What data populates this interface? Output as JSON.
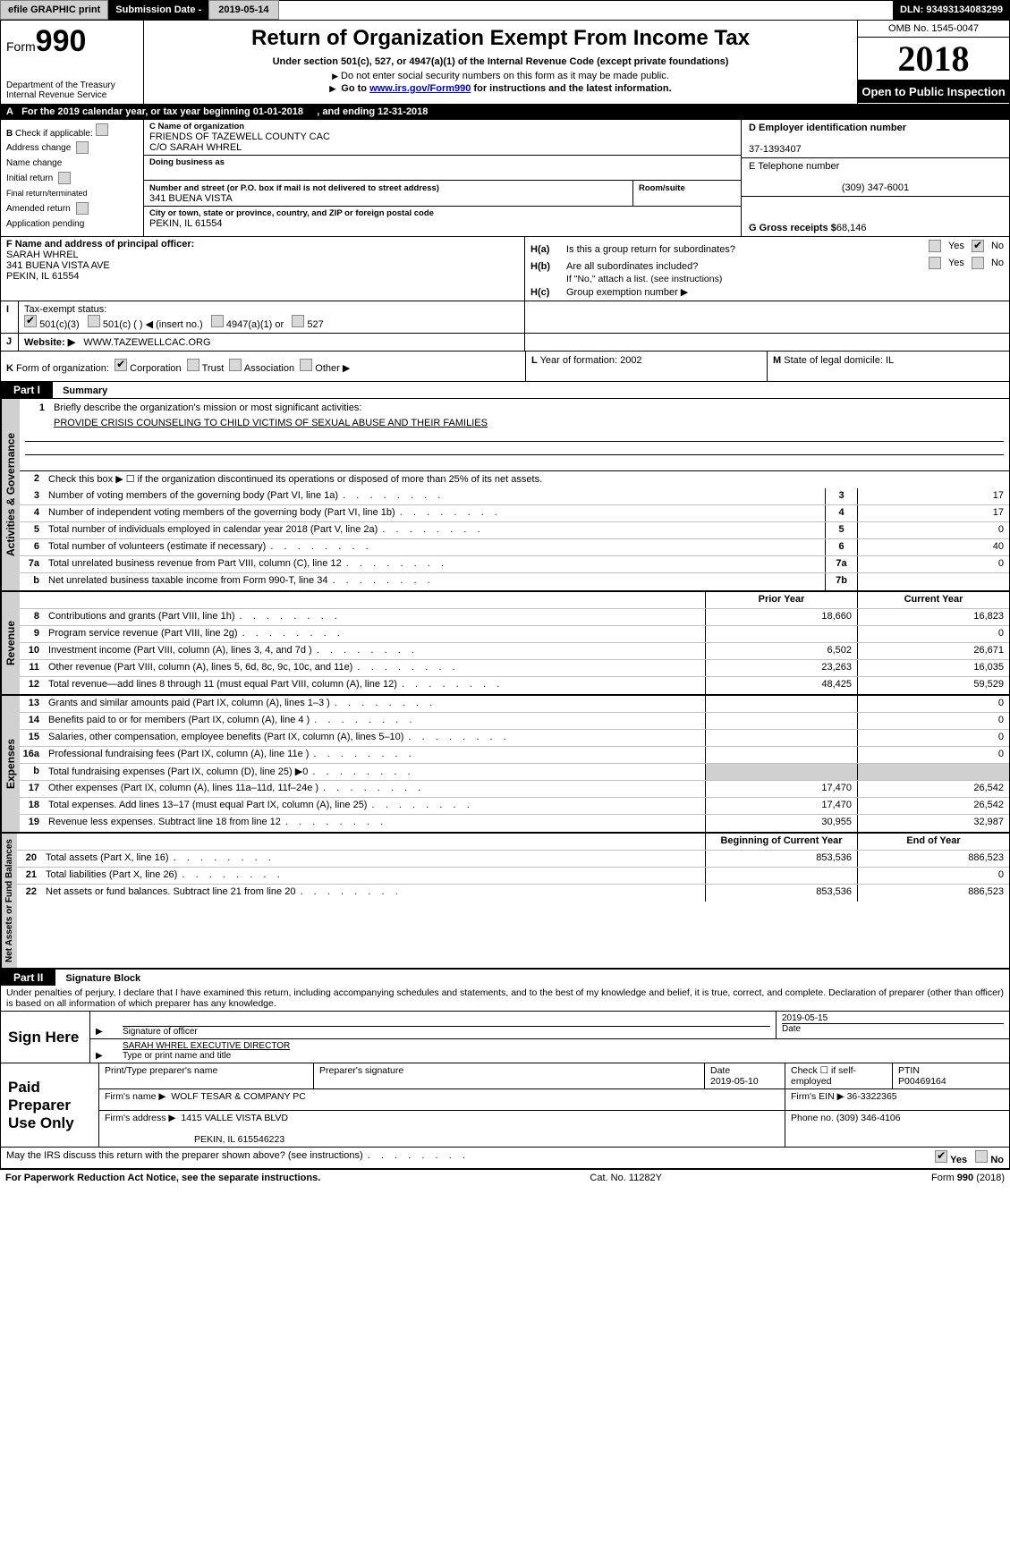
{
  "top": {
    "efile_btn": "efile GRAPHIC print",
    "submission_label": "Submission Date - ",
    "submission_date": "2019-05-14",
    "dln_label": "DLN:",
    "dln": "93493134083299"
  },
  "header": {
    "form_prefix": "Form",
    "form_number": "990",
    "dept_line1": "Department of the Treasury",
    "dept_line2": "Internal Revenue Service",
    "title": "Return of Organization Exempt From Income Tax",
    "subtitle": "Under section 501(c), 527, or 4947(a)(1) of the Internal Revenue Code (except private foundations)",
    "note1": "Do not enter social security numbers on this form as it may be made public.",
    "note2_prefix": "Go to ",
    "note2_link": "www.irs.gov/Form990",
    "note2_suffix": " for instructions and the latest information.",
    "omb": "OMB No. 1545-0047",
    "year": "2018",
    "open_pub": "Open to Public Inspection"
  },
  "line_a": {
    "prefix": "A",
    "text": "For the 2019 calendar year, or tax year beginning ",
    "begin": "01-01-2018",
    "mid": ", and ending ",
    "end": "12-31-2018"
  },
  "col_b": {
    "header": "B",
    "check_label": "Check if applicable:",
    "opts": [
      "Address change",
      "Name change",
      "Initial return",
      "Final return/terminated",
      "Amended return",
      "Application pending"
    ]
  },
  "col_c": {
    "name_lbl": "C Name of organization",
    "name": "FRIENDS OF TAZEWELL COUNTY CAC",
    "co": "C/O SARAH WHREL",
    "dba_lbl": "Doing business as",
    "dba": "",
    "street_lbl": "Number and street (or P.O. box if mail is not delivered to street address)",
    "street": "341 BUENA VISTA",
    "room_lbl": "Room/suite",
    "room": "",
    "city_lbl": "City or town, state or province, country, and ZIP or foreign postal code",
    "city": "PEKIN, IL  61554"
  },
  "col_d": {
    "ein_lbl": "D Employer identification number",
    "ein": "37-1393407",
    "tel_lbl": "E Telephone number",
    "tel": "(309) 347-6001",
    "gross_lbl": "G Gross receipts $",
    "gross": "68,146"
  },
  "row_f": {
    "lbl": "F Name and address of principal officer:",
    "name": "SARAH WHREL",
    "addr1": "341 BUENA VISTA AVE",
    "addr2": "PEKIN, IL  61554",
    "ha": "H(a)",
    "ha_q": "Is this a group return for subordinates?",
    "hb": "H(b)",
    "hb_q": "Are all subordinates included?",
    "hb_note": "If \"No,\" attach a list. (see instructions)",
    "hc": "H(c)",
    "hc_q": "Group exemption number ▶",
    "yes": "Yes",
    "no": "No"
  },
  "row_i": {
    "lbl": "I",
    "text": "Tax-exempt status:",
    "opts": [
      "501(c)(3)",
      "501(c) (   ) ◀ (insert no.)",
      "4947(a)(1) or",
      "527"
    ]
  },
  "row_j": {
    "lbl": "J",
    "text": "Website: ▶",
    "val": "WWW.TAZEWELLCAC.ORG"
  },
  "row_k": {
    "lbl": "K",
    "text": "Form of organization:",
    "opts": [
      "Corporation",
      "Trust",
      "Association",
      "Other ▶"
    ]
  },
  "row_l": {
    "lbl": "L",
    "text": "Year of formation: ",
    "val": "2002"
  },
  "row_m": {
    "lbl": "M",
    "text": "State of legal domicile: ",
    "val": "IL"
  },
  "parts": {
    "p1": "Part I",
    "p1_title": "Summary",
    "p2": "Part II",
    "p2_title": "Signature Block"
  },
  "tabs": {
    "gov": "Activities & Governance",
    "rev": "Revenue",
    "exp": "Expenses",
    "net": "Net Assets or Fund Balances"
  },
  "summary": {
    "l1_lbl": "Briefly describe the organization's mission or most significant activities:",
    "l1_val": "PROVIDE CRISIS COUNSELING TO CHILD VICTIMS OF SEXUAL ABUSE AND THEIR FAMILIES",
    "l2": "Check this box ▶ ☐ if the organization discontinued its operations or disposed of more than 25% of its net assets.",
    "lines_gov": [
      {
        "n": "3",
        "d": "Number of voting members of the governing body (Part VI, line 1a)",
        "box": "3",
        "v": "17"
      },
      {
        "n": "4",
        "d": "Number of independent voting members of the governing body (Part VI, line 1b)",
        "box": "4",
        "v": "17"
      },
      {
        "n": "5",
        "d": "Total number of individuals employed in calendar year 2018 (Part V, line 2a)",
        "box": "5",
        "v": "0"
      },
      {
        "n": "6",
        "d": "Total number of volunteers (estimate if necessary)",
        "box": "6",
        "v": "40"
      },
      {
        "n": "7a",
        "d": "Total unrelated business revenue from Part VIII, column (C), line 12",
        "box": "7a",
        "v": "0"
      },
      {
        "n": "b",
        "d": "Net unrelated business taxable income from Form 990-T, line 34",
        "box": "7b",
        "v": ""
      }
    ],
    "hdr_prior": "Prior Year",
    "hdr_curr": "Current Year",
    "lines_rev": [
      {
        "n": "8",
        "d": "Contributions and grants (Part VIII, line 1h)",
        "p": "18,660",
        "c": "16,823"
      },
      {
        "n": "9",
        "d": "Program service revenue (Part VIII, line 2g)",
        "p": "",
        "c": "0"
      },
      {
        "n": "10",
        "d": "Investment income (Part VIII, column (A), lines 3, 4, and 7d )",
        "p": "6,502",
        "c": "26,671"
      },
      {
        "n": "11",
        "d": "Other revenue (Part VIII, column (A), lines 5, 6d, 8c, 9c, 10c, and 11e)",
        "p": "23,263",
        "c": "16,035"
      },
      {
        "n": "12",
        "d": "Total revenue—add lines 8 through 11 (must equal Part VIII, column (A), line 12)",
        "p": "48,425",
        "c": "59,529"
      }
    ],
    "lines_exp": [
      {
        "n": "13",
        "d": "Grants and similar amounts paid (Part IX, column (A), lines 1–3 )",
        "p": "",
        "c": "0"
      },
      {
        "n": "14",
        "d": "Benefits paid to or for members (Part IX, column (A), line 4 )",
        "p": "",
        "c": "0"
      },
      {
        "n": "15",
        "d": "Salaries, other compensation, employee benefits (Part IX, column (A), lines 5–10)",
        "p": "",
        "c": "0"
      },
      {
        "n": "16a",
        "d": "Professional fundraising fees (Part IX, column (A), line 11e )",
        "p": "",
        "c": "0"
      },
      {
        "n": "b",
        "d": "Total fundraising expenses (Part IX, column (D), line 25) ▶0",
        "p": "GRAY",
        "c": "GRAY"
      },
      {
        "n": "17",
        "d": "Other expenses (Part IX, column (A), lines 11a–11d, 11f–24e )",
        "p": "17,470",
        "c": "26,542"
      },
      {
        "n": "18",
        "d": "Total expenses. Add lines 13–17 (must equal Part IX, column (A), line 25)",
        "p": "17,470",
        "c": "26,542"
      },
      {
        "n": "19",
        "d": "Revenue less expenses. Subtract line 18 from line 12",
        "p": "30,955",
        "c": "32,987"
      }
    ],
    "hdr_beg": "Beginning of Current Year",
    "hdr_end": "End of Year",
    "lines_net": [
      {
        "n": "20",
        "d": "Total assets (Part X, line 16)",
        "p": "853,536",
        "c": "886,523"
      },
      {
        "n": "21",
        "d": "Total liabilities (Part X, line 26)",
        "p": "",
        "c": "0"
      },
      {
        "n": "22",
        "d": "Net assets or fund balances. Subtract line 21 from line 20",
        "p": "853,536",
        "c": "886,523"
      }
    ]
  },
  "perjury": "Under penalties of perjury, I declare that I have examined this return, including accompanying schedules and statements, and to the best of my knowledge and belief, it is true, correct, and complete. Declaration of preparer (other than officer) is based on all information of which preparer has any knowledge.",
  "sign": {
    "label": "Sign Here",
    "sig_lbl": "Signature of officer",
    "date_lbl": "Date",
    "date": "2019-05-15",
    "name": "SARAH WHREL  EXECUTIVE DIRECTOR",
    "name_lbl": "Type or print name and title"
  },
  "paid": {
    "label": "Paid Preparer Use Only",
    "h_print": "Print/Type preparer's name",
    "h_sig": "Preparer's signature",
    "h_date": "Date",
    "date": "2019-05-10",
    "check_lbl": "Check ☐ if self-employed",
    "ptin_lbl": "PTIN",
    "ptin": "P00469164",
    "firm_name_lbl": "Firm's name    ▶",
    "firm_name": "WOLF TESAR & COMPANY PC",
    "firm_ein_lbl": "Firm's EIN ▶",
    "firm_ein": "36-3322365",
    "firm_addr_lbl": "Firm's address ▶",
    "firm_addr1": "1415 VALLE VISTA BLVD",
    "firm_addr2": "PEKIN, IL  615546223",
    "phone_lbl": "Phone no.",
    "phone": "(309) 346-4106"
  },
  "discuss": {
    "q": "May the IRS discuss this return with the preparer shown above? (see instructions)",
    "yes": "Yes",
    "no": "No"
  },
  "footer": {
    "left": "For Paperwork Reduction Act Notice, see the separate instructions.",
    "mid": "Cat. No. 11282Y",
    "right_prefix": "Form ",
    "right_form": "990",
    "right_suffix": " (2018)"
  },
  "colors": {
    "black": "#000000",
    "white": "#ffffff",
    "gray_btn": "#d0d0d0",
    "link": "#0000cc"
  }
}
